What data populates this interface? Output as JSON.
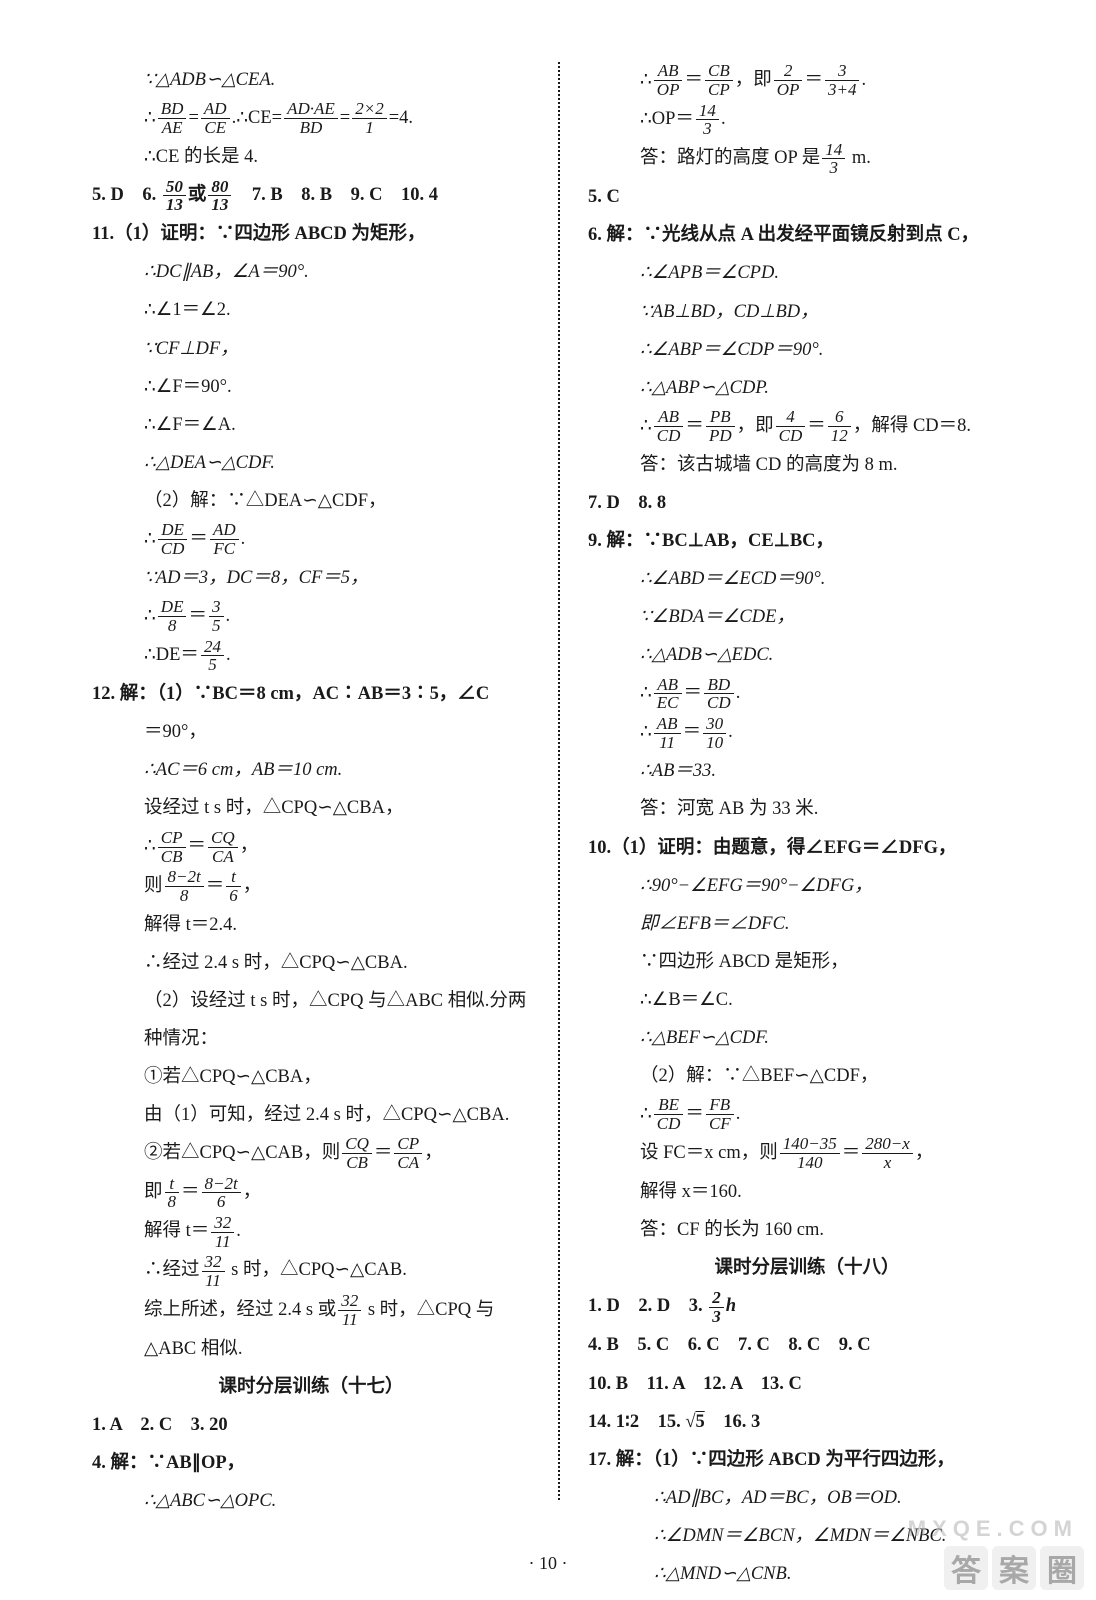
{
  "page_number": "· 10 ·",
  "watermark_chars": [
    "答",
    "案",
    "圈"
  ],
  "watermark_url": "MXQE.COM",
  "left": {
    "l1": "∵△ADB∽△CEA.",
    "l2a": "∴",
    "l2b": "=",
    "l2c": ".∴CE=",
    "l2d": "=",
    "l2e": "=4.",
    "f1n": "BD",
    "f1d": "AE",
    "f2n": "AD",
    "f2d": "CE",
    "f3n": "AD·AE",
    "f3d": "BD",
    "f4n": "2×2",
    "f4d": "1",
    "l3": "∴CE 的长是 4.",
    "l4a": "5. D　6. ",
    "l4b": "或",
    "l4c": "　7. B　8. B　9. C　10. 4",
    "f5n": "50",
    "f5d": "13",
    "f6n": "80",
    "f6d": "13",
    "l5": "11.（1）证明：∵四边形 ABCD 为矩形，",
    "l6": "∴DC∥AB，∠A＝90°.",
    "l7": "∴∠1＝∠2.",
    "l8": "∵CF⊥DF，",
    "l9": "∴∠F＝90°.",
    "l10": "∴∠F＝∠A.",
    "l11": "∴△DEA∽△CDF.",
    "l12": "（2）解：∵△DEA∽△CDF，",
    "l13a": "∴",
    "l13b": "＝",
    "l13c": ".",
    "f7n": "DE",
    "f7d": "CD",
    "f8n": "AD",
    "f8d": "FC",
    "l14": "∵AD＝3，DC＝8，CF＝5，",
    "l15a": "∴",
    "l15b": "＝",
    "l15c": ".",
    "f9n": "DE",
    "f9d": "8",
    "f10n": "3",
    "f10d": "5",
    "l16a": "∴DE＝",
    "l16b": ".",
    "f11n": "24",
    "f11d": "5",
    "l17a": "12. 解：（1）∵BC＝8 cm，AC∶AB＝3∶5，∠C",
    "l17b": "＝90°，",
    "l18": "∴AC＝6 cm，AB＝10 cm.",
    "l19": "设经过 t s 时，△CPQ∽△CBA，",
    "l20a": "∴",
    "l20b": "＝",
    "l20c": "，",
    "f12n": "CP",
    "f12d": "CB",
    "f13n": "CQ",
    "f13d": "CA",
    "l21a": "则",
    "l21b": "＝",
    "l21c": "，",
    "f14n": "8−2t",
    "f14d": "8",
    "f15n": "t",
    "f15d": "6",
    "l22": "解得 t＝2.4.",
    "l23": "∴经过 2.4 s 时，△CPQ∽△CBA.",
    "l24": "（2）设经过 t s 时，△CPQ 与△ABC 相似.分两",
    "l24b": "种情况：",
    "l25": "①若△CPQ∽△CBA，",
    "l26": "由（1）可知，经过 2.4 s 时，△CPQ∽△CBA.",
    "l27a": "②若△CPQ∽△CAB，则",
    "l27b": "＝",
    "l27c": "，",
    "f16n": "CQ",
    "f16d": "CB",
    "f17n": "CP",
    "f17d": "CA",
    "l28a": "即",
    "l28b": "＝",
    "l28c": "，",
    "f18n": "t",
    "f18d": "8",
    "f19n": "8−2t",
    "f19d": "6",
    "l29a": "解得 t＝",
    "l29b": ".",
    "f20n": "32",
    "f20d": "11",
    "l30a": "∴经过",
    "l30b": " s 时，△CPQ∽△CAB.",
    "f21n": "32",
    "f21d": "11",
    "l31a": "综上所述，经过 2.4 s 或",
    "l31b": " s 时，△CPQ 与",
    "f22n": "32",
    "f22d": "11",
    "l32": "△ABC 相似.",
    "heading17": "课时分层训练（十七）",
    "l33": "1. A　2. C　3. 20",
    "l34": "4. 解：∵AB∥OP，",
    "l35": "∴△ABC∽△OPC."
  },
  "right": {
    "r1a": "∴",
    "r1b": "＝",
    "r1c": "，即",
    "r1d": "＝",
    "r1e": ".",
    "g1n": "AB",
    "g1d": "OP",
    "g2n": "CB",
    "g2d": "CP",
    "g3n": "2",
    "g3d": "OP",
    "g4n": "3",
    "g4d": "3+4",
    "r2a": "∴OP＝",
    "r2b": ".",
    "g5n": "14",
    "g5d": "3",
    "r3a": "答：路灯的高度 OP 是",
    "r3b": " m.",
    "g6n": "14",
    "g6d": "3",
    "r4": "5. C",
    "r5": "6. 解：∵光线从点 A 出发经平面镜反射到点 C，",
    "r6": "∴∠APB＝∠CPD.",
    "r7": "∵AB⊥BD，CD⊥BD，",
    "r8": "∴∠ABP＝∠CDP＝90°.",
    "r9": "∴△ABP∽△CDP.",
    "r10a": "∴",
    "r10b": "＝",
    "r10c": "，即",
    "r10d": "＝",
    "r10e": "，解得 CD＝8.",
    "g7n": "AB",
    "g7d": "CD",
    "g8n": "PB",
    "g8d": "PD",
    "g9n": "4",
    "g9d": "CD",
    "g10n": "6",
    "g10d": "12",
    "r11": "答：该古城墙 CD 的高度为 8 m.",
    "r12": "7. D　8. 8",
    "r13": "9. 解：∵BC⊥AB，CE⊥BC，",
    "r14": "∴∠ABD＝∠ECD＝90°.",
    "r15": "∵∠BDA＝∠CDE，",
    "r16": "∴△ADB∽△EDC.",
    "r17a": "∴",
    "r17b": "＝",
    "r17c": ".",
    "g11n": "AB",
    "g11d": "EC",
    "g12n": "BD",
    "g12d": "CD",
    "r18a": "∴",
    "r18b": "＝",
    "r18c": ".",
    "g13n": "AB",
    "g13d": "11",
    "g14n": "30",
    "g14d": "10",
    "r19": "∴AB＝33.",
    "r20": "答：河宽 AB 为 33 米.",
    "r21": "10.（1）证明：由题意，得∠EFG＝∠DFG，",
    "r22": "∴90°−∠EFG＝90°−∠DFG，",
    "r23": "即∠EFB＝∠DFC.",
    "r24": "∵四边形 ABCD 是矩形，",
    "r25": "∴∠B＝∠C.",
    "r26": "∴△BEF∽△CDF.",
    "r27": "（2）解：∵△BEF∽△CDF，",
    "r28a": "∴",
    "r28b": "＝",
    "r28c": ".",
    "g15n": "BE",
    "g15d": "CD",
    "g16n": "FB",
    "g16d": "CF",
    "r29a": "设 FC＝x cm，则",
    "r29b": "＝",
    "r29c": "，",
    "g17n": "140−35",
    "g17d": "140",
    "g18n": "280−x",
    "g18d": "x",
    "r30": "解得 x＝160.",
    "r31": "答：CF 的长为 160 cm.",
    "heading18": "课时分层训练（十八）",
    "r32a": "1. D　2. D　3. ",
    "r32b": "h",
    "g19n": "2",
    "g19d": "3",
    "r33": "4. B　5. C　6. C　7. C　8. C　9. C",
    "r34": "10. B　11. A　12. A　13. C",
    "r35a": "14. 1∶2　15. ",
    "r35b": "5",
    "r35c": "　16. 3",
    "r36": "17. 解：（1）∵四边形 ABCD 为平行四边形，",
    "r37": "∴AD∥BC，AD＝BC，OB＝OD.",
    "r38": "∴∠DMN＝∠BCN，∠MDN＝∠NBC.",
    "r39": "∴△MND∽△CNB."
  }
}
